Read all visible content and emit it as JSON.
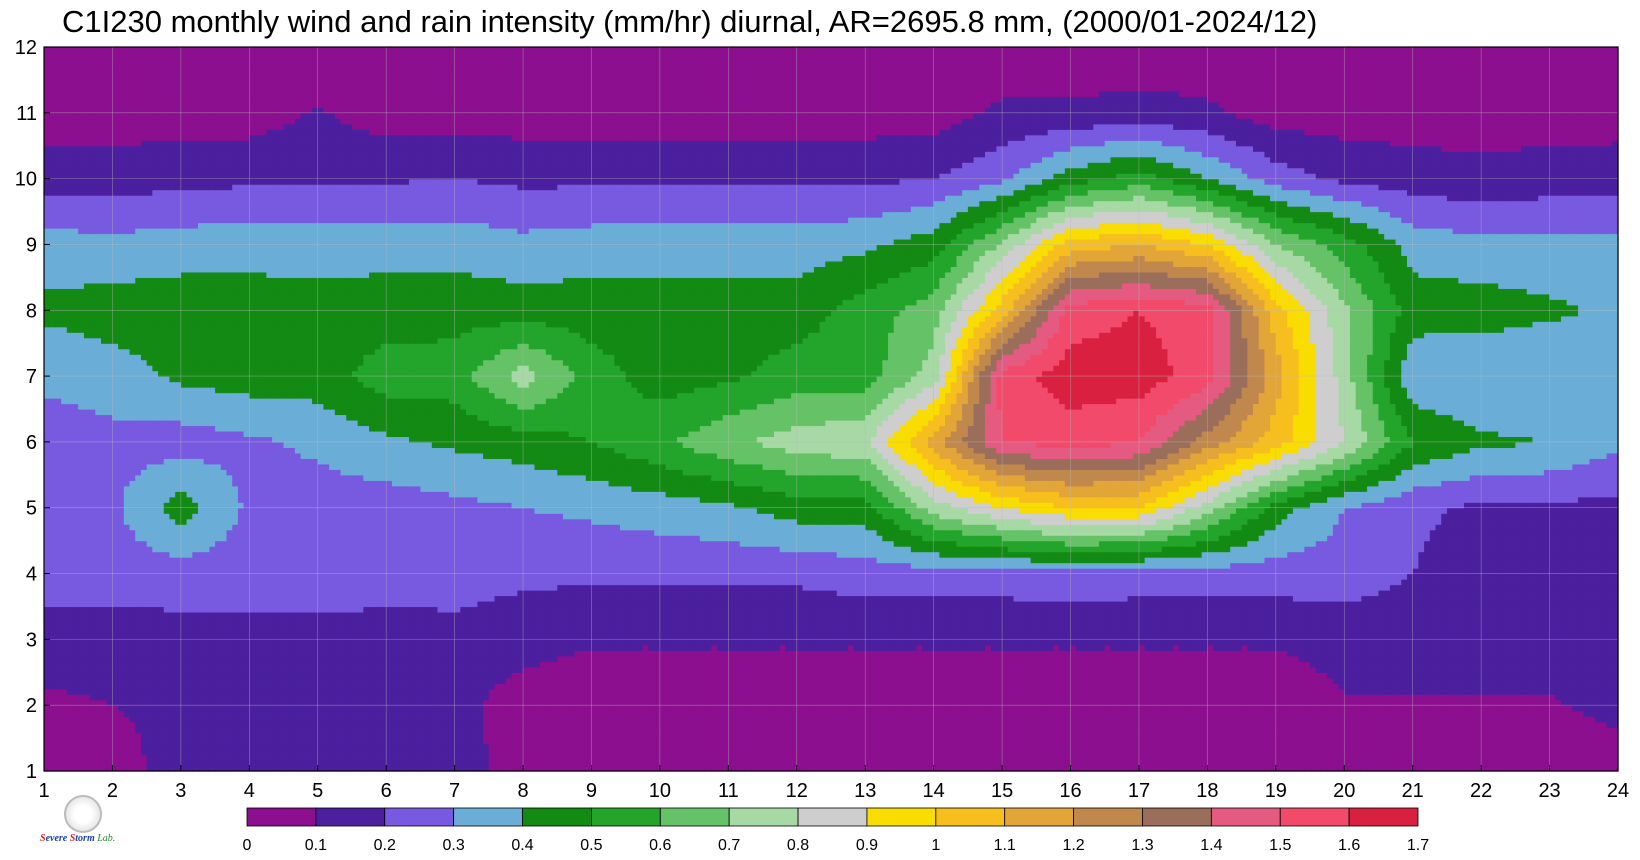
{
  "title": "C1I230 monthly wind and rain intensity (mm/hr) diurnal, AR=2695.8 mm, (2000/01-2024/12)",
  "logo": {
    "name": "Severe Storm Lab.",
    "text_parts": [
      "S",
      "evere ",
      "S",
      "torm ",
      "Lab."
    ]
  },
  "chart_data": {
    "type": "contour",
    "title": "C1I230 monthly wind and rain intensity (mm/hr) diurnal, AR=2695.8 mm, (2000/01-2024/12)",
    "xlabel": "",
    "ylabel": "",
    "xlim": [
      1,
      24
    ],
    "ylim": [
      1,
      12
    ],
    "x_ticks": [
      "1",
      "2",
      "3",
      "4",
      "5",
      "6",
      "7",
      "8",
      "9",
      "10",
      "11",
      "12",
      "13",
      "14",
      "15",
      "16",
      "17",
      "18",
      "19",
      "20",
      "21",
      "22",
      "23",
      "24"
    ],
    "y_ticks": [
      "1",
      "2",
      "3",
      "4",
      "5",
      "6",
      "7",
      "8",
      "9",
      "10",
      "11",
      "12"
    ],
    "grid": true,
    "colorbar": {
      "placement": "bottom",
      "levels": [
        0,
        0.1,
        0.2,
        0.3,
        0.4,
        0.5,
        0.6,
        0.7,
        0.8,
        0.9,
        1,
        1.1,
        1.2,
        1.3,
        1.4,
        1.5,
        1.6,
        1.7
      ],
      "labels": [
        "0",
        "0.1",
        "0.2",
        "0.3",
        "0.4",
        "0.5",
        "0.6",
        "0.7",
        "0.8",
        "0.9",
        "1",
        "1.1",
        "1.2",
        "1.3",
        "1.4",
        "1.5",
        "1.6",
        "1.7"
      ],
      "colors": [
        "#8b0f8e",
        "#4b1f9e",
        "#785ae0",
        "#6aaed8",
        "#138a13",
        "#22a52a",
        "#66c266",
        "#a7d9a5",
        "#cecece",
        "#f9dc00",
        "#f7bf1e",
        "#e2a538",
        "#c0884c",
        "#9a6e5a",
        "#e55a80",
        "#f24a6a",
        "#d92040"
      ]
    },
    "x": [
      1,
      2,
      3,
      4,
      5,
      6,
      7,
      8,
      9,
      10,
      11,
      12,
      13,
      14,
      15,
      16,
      17,
      18,
      19,
      20,
      21,
      22,
      23,
      24
    ],
    "y": [
      1,
      2,
      3,
      4,
      5,
      6,
      7,
      8,
      9,
      10,
      11,
      12
    ],
    "values": [
      [
        0.05,
        0.08,
        0.12,
        0.18,
        0.15,
        0.18,
        0.15,
        0.05,
        0.03,
        0.03,
        0.03,
        0.03,
        0.03,
        0.03,
        0.03,
        0.03,
        0.03,
        0.03,
        0.03,
        0.03,
        0.03,
        0.03,
        0.03,
        0.05
      ],
      [
        0.08,
        0.1,
        0.11,
        0.13,
        0.11,
        0.13,
        0.13,
        0.05,
        0.03,
        0.03,
        0.03,
        0.03,
        0.03,
        0.03,
        0.03,
        0.03,
        0.03,
        0.03,
        0.03,
        0.09,
        0.09,
        0.09,
        0.09,
        0.13
      ],
      [
        0.15,
        0.15,
        0.16,
        0.16,
        0.17,
        0.16,
        0.16,
        0.14,
        0.11,
        0.11,
        0.11,
        0.11,
        0.11,
        0.11,
        0.11,
        0.11,
        0.11,
        0.11,
        0.11,
        0.14,
        0.14,
        0.14,
        0.14,
        0.16
      ],
      [
        0.25,
        0.25,
        0.25,
        0.25,
        0.25,
        0.24,
        0.25,
        0.22,
        0.22,
        0.22,
        0.22,
        0.22,
        0.25,
        0.25,
        0.25,
        0.27,
        0.25,
        0.25,
        0.25,
        0.25,
        0.2,
        0.15,
        0.15,
        0.15
      ],
      [
        0.25,
        0.28,
        0.45,
        0.28,
        0.25,
        0.25,
        0.27,
        0.3,
        0.32,
        0.35,
        0.38,
        0.45,
        0.45,
        0.75,
        0.9,
        1.0,
        1.0,
        0.75,
        0.45,
        0.3,
        0.22,
        0.18,
        0.18,
        0.17
      ],
      [
        0.25,
        0.27,
        0.25,
        0.28,
        0.32,
        0.38,
        0.42,
        0.45,
        0.5,
        0.58,
        0.68,
        0.75,
        0.78,
        1.15,
        1.5,
        1.55,
        1.5,
        1.25,
        1.05,
        0.8,
        0.5,
        0.42,
        0.4,
        0.32
      ],
      [
        0.32,
        0.35,
        0.42,
        0.45,
        0.45,
        0.55,
        0.55,
        0.75,
        0.55,
        0.45,
        0.48,
        0.55,
        0.55,
        0.75,
        1.55,
        1.65,
        1.65,
        1.55,
        1.15,
        0.75,
        0.32,
        0.3,
        0.3,
        0.35
      ],
      [
        0.42,
        0.45,
        0.46,
        0.45,
        0.45,
        0.45,
        0.46,
        0.45,
        0.45,
        0.45,
        0.45,
        0.45,
        0.55,
        0.65,
        1.05,
        1.55,
        1.6,
        1.55,
        1.05,
        0.72,
        0.45,
        0.45,
        0.42,
        0.38
      ],
      [
        0.35,
        0.33,
        0.35,
        0.36,
        0.35,
        0.36,
        0.36,
        0.33,
        0.35,
        0.35,
        0.35,
        0.35,
        0.38,
        0.45,
        0.72,
        1.05,
        1.1,
        1.0,
        0.7,
        0.55,
        0.36,
        0.33,
        0.33,
        0.32
      ],
      [
        0.15,
        0.15,
        0.17,
        0.18,
        0.18,
        0.19,
        0.2,
        0.18,
        0.18,
        0.18,
        0.18,
        0.18,
        0.18,
        0.2,
        0.28,
        0.45,
        0.55,
        0.4,
        0.25,
        0.18,
        0.15,
        0.13,
        0.15,
        0.16
      ],
      [
        0.05,
        0.05,
        0.05,
        0.05,
        0.11,
        0.05,
        0.05,
        0.05,
        0.05,
        0.05,
        0.05,
        0.05,
        0.05,
        0.05,
        0.12,
        0.12,
        0.14,
        0.12,
        0.05,
        0.05,
        0.05,
        0.05,
        0.05,
        0.05
      ],
      [
        0.03,
        0.03,
        0.03,
        0.03,
        0.03,
        0.03,
        0.03,
        0.03,
        0.03,
        0.03,
        0.03,
        0.03,
        0.03,
        0.03,
        0.03,
        0.03,
        0.03,
        0.03,
        0.03,
        0.03,
        0.03,
        0.03,
        0.03,
        0.03
      ]
    ]
  }
}
